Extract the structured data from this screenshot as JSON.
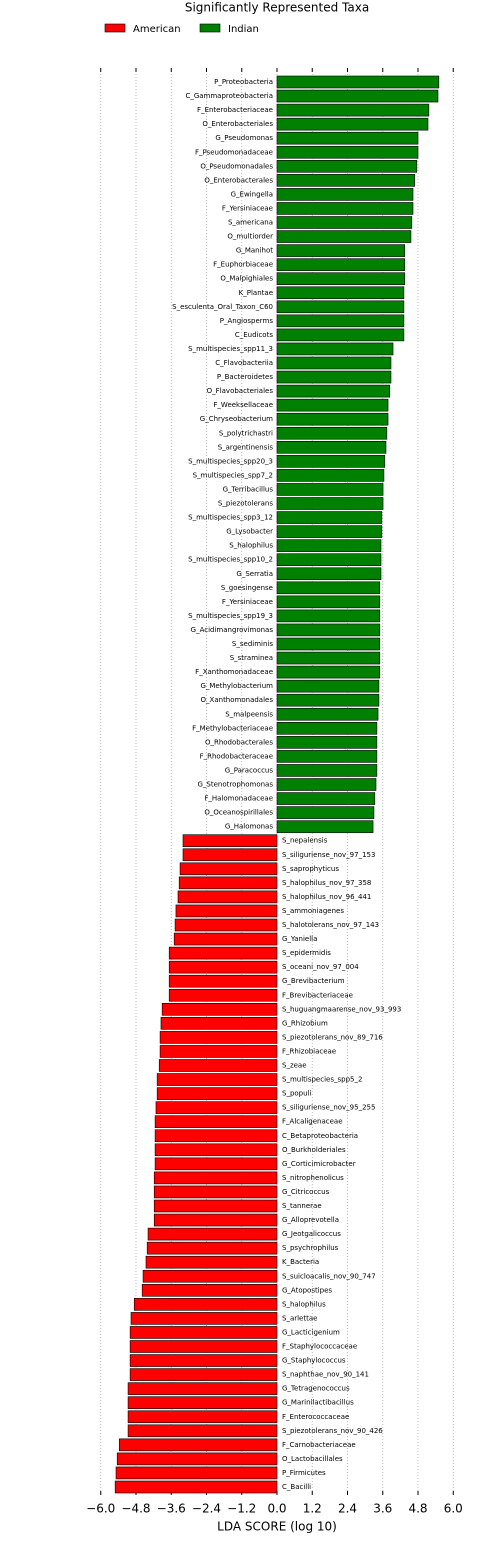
{
  "chart_data": {
    "type": "hbar_diverging",
    "title": "Significantly Represented Taxa",
    "xlabel": "LDA SCORE (log 10)",
    "legend": "top-left",
    "categories": [
      "P_Proteobacteria",
      "C_Gammaproteobacteria",
      "F_Enterobacteriaceae",
      "O_Enterobacteriales",
      "G_Pseudomonas",
      "F_Pseudomonadaceae",
      "O_Pseudomonadales",
      "O_Enterobacterales",
      "G_Ewingella",
      "F_Yersiniaceae",
      "S_americana",
      "O_multiorder",
      "G_Manihot",
      "F_Euphorbiaceae",
      "O_Malpighiales",
      "K_Plantae",
      "S_esculenta_Oral_Taxon_C60",
      "P_Angiosperms",
      "C_Eudicots",
      "S_multispecies_spp11_3",
      "C_Flavobacteriia",
      "P_Bacteroidetes",
      "O_Flavobacteriales",
      "F_Weeksellaceae",
      "G_Chryseobacterium",
      "S_polytrichastri",
      "S_argentinensis",
      "S_multispecies_spp20_3",
      "S_multispecies_spp7_2",
      "G_Terribacillus",
      "S_piezotolerans",
      "S_multispecies_spp3_12",
      "G_Lysobacter",
      "S_halophilus",
      "S_multispecies_spp10_2",
      "G_Serratia",
      "S_goesingense",
      "F_Yersiniaceae",
      "S_multispecies_spp19_3",
      "G_Acidimangrovimonas",
      "S_sediminis",
      "S_straminea",
      "F_Xanthomonadaceae",
      "G_Methylobacterium",
      "O_Xanthomonadales",
      "S_malpeensis",
      "F_Methylobacteriaceae",
      "O_Rhodobacterales",
      "F_Rhodobacteraceae",
      "G_Paracoccus",
      "G_Stenotrophomonas",
      "F_Halomonadaceae",
      "O_Oceanospirillales",
      "G_Halomonas",
      "S_nepalensis",
      "S_siliguriense_nov_97_153",
      "S_saprophyticus",
      "S_halophilus_nov_97_358",
      "S_halophilus_nov_96_441",
      "S_ammoniagenes",
      "S_halotolerans_nov_97_143",
      "G_Yaniella",
      "S_epidermidis",
      "S_oceani_nov_97_004",
      "G_Brevibacterium",
      "F_Brevibacteriaceae",
      "S_huguangmaarense_nov_93_993",
      "G_Rhizobium",
      "S_piezotolerans_nov_89_716",
      "F_Rhizobiaceae",
      "S_zeae",
      "S_multispecies_spp5_2",
      "S_populi",
      "S_siliguriense_nov_95_255",
      "F_Alcaligenaceae",
      "C_Betaproteobacteria",
      "O_Burkholderiales",
      "G_Corticimicrobacter",
      "S_nitrophenolicus",
      "G_Citricoccus",
      "S_tannerae",
      "G_Alloprevotella",
      "G_Jeotgalicoccus",
      "S_psychrophilus",
      "K_Bacteria",
      "S_suicloacalis_nov_90_747",
      "G_Atopostipes",
      "S_halophilus",
      "S_arlettae",
      "G_Lacticigenium",
      "F_Staphylococcaceae",
      "G_Staphylococcus",
      "S_naphthae_nov_90_141",
      "G_Tetragenococcus",
      "G_Marinilactibacillus",
      "F_Enterococcaceae",
      "S_piezotolerans_nov_90_426",
      "F_Carnobacteriaceae",
      "O_Lactobacillales",
      "P_Firmicutes",
      "C_Bacilli"
    ],
    "series": [
      {
        "name": "American",
        "color": "#ff0000",
        "values": [
          null,
          null,
          null,
          null,
          null,
          null,
          null,
          null,
          null,
          null,
          null,
          null,
          null,
          null,
          null,
          null,
          null,
          null,
          null,
          null,
          null,
          null,
          null,
          null,
          null,
          null,
          null,
          null,
          null,
          null,
          null,
          null,
          null,
          null,
          null,
          null,
          null,
          null,
          null,
          null,
          null,
          null,
          null,
          null,
          null,
          null,
          null,
          null,
          null,
          null,
          null,
          null,
          null,
          null,
          -3.2,
          -3.2,
          -3.3,
          -3.33,
          -3.37,
          -3.44,
          -3.47,
          -3.5,
          -3.67,
          -3.67,
          -3.67,
          -3.67,
          -3.91,
          -3.95,
          -3.98,
          -3.98,
          -4.01,
          -4.08,
          -4.08,
          -4.12,
          -4.15,
          -4.15,
          -4.15,
          -4.15,
          -4.18,
          -4.18,
          -4.18,
          -4.18,
          -4.39,
          -4.42,
          -4.46,
          -4.56,
          -4.59,
          -4.86,
          -4.97,
          -5.0,
          -5.0,
          -5.0,
          -5.0,
          -5.07,
          -5.07,
          -5.07,
          -5.07,
          -5.37,
          -5.44,
          -5.48,
          -5.51
        ]
      },
      {
        "name": "Indian",
        "color": "#008000",
        "values": [
          5.51,
          5.48,
          5.17,
          5.14,
          4.8,
          4.8,
          4.76,
          4.69,
          4.63,
          4.63,
          4.59,
          4.56,
          4.35,
          4.35,
          4.35,
          4.32,
          4.32,
          4.32,
          4.32,
          3.95,
          3.88,
          3.88,
          3.84,
          3.78,
          3.78,
          3.74,
          3.71,
          3.67,
          3.64,
          3.61,
          3.61,
          3.57,
          3.57,
          3.54,
          3.54,
          3.54,
          3.5,
          3.5,
          3.5,
          3.5,
          3.5,
          3.5,
          3.5,
          3.47,
          3.47,
          3.44,
          3.4,
          3.4,
          3.4,
          3.4,
          3.37,
          3.33,
          3.3,
          3.27,
          null,
          null,
          null,
          null,
          null,
          null,
          null,
          null,
          null,
          null,
          null,
          null,
          null,
          null,
          null,
          null,
          null,
          null,
          null,
          null,
          null,
          null,
          null,
          null,
          null,
          null,
          null,
          null,
          null,
          null,
          null,
          null,
          null,
          null,
          null,
          null,
          null,
          null,
          null,
          null,
          null,
          null,
          null,
          null,
          null,
          null,
          null
        ]
      }
    ],
    "xlim": [
      -6.4,
      6.4
    ],
    "xticks": [
      {
        "value": -6,
        "label": "−6.0"
      },
      {
        "value": -4.8,
        "label": "−4.8"
      },
      {
        "value": -3.6,
        "label": "−3.6"
      },
      {
        "value": -2.4,
        "label": "−2.4"
      },
      {
        "value": -1.2,
        "label": "−1.2"
      },
      {
        "value": 0,
        "label": "0.0"
      },
      1.2,
      2.4,
      3.6,
      4.8,
      {
        "value": 6,
        "label": "6.0"
      }
    ],
    "grid": true
  }
}
